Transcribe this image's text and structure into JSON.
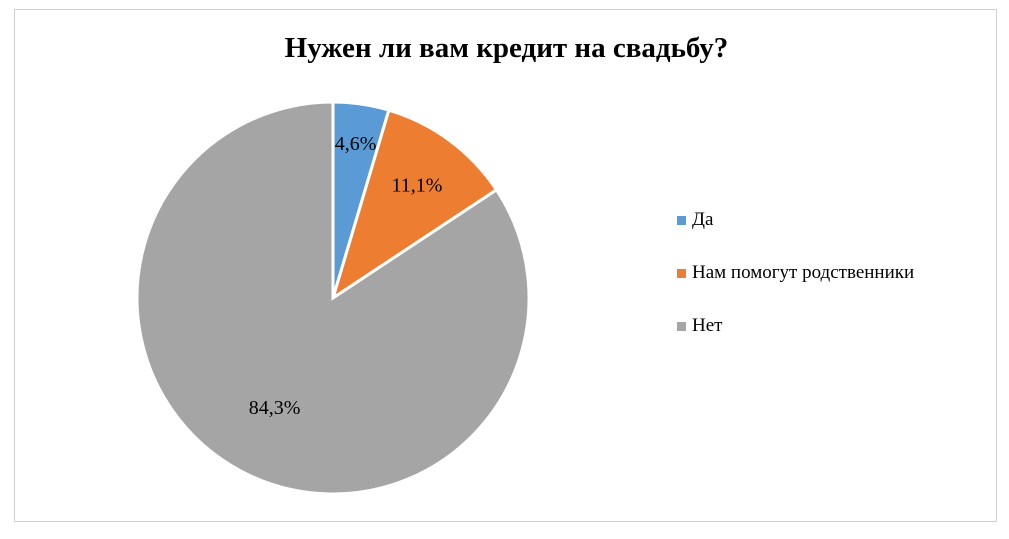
{
  "chart_data": {
    "type": "pie",
    "title": "Нужен ли вам кредит на свадьбу?",
    "slices": [
      {
        "label": "Да",
        "value": 4.6,
        "value_label": "4,6%",
        "color": "#5b9bd5"
      },
      {
        "label": "Нам помогут родственники",
        "value": 11.1,
        "value_label": "11,1%",
        "color": "#ed7d31"
      },
      {
        "label": "Нет",
        "value": 84.3,
        "value_label": "84,3%",
        "color": "#a5a5a5"
      }
    ],
    "legend_position": "right",
    "start_angle": "top",
    "direction": "clockwise"
  }
}
